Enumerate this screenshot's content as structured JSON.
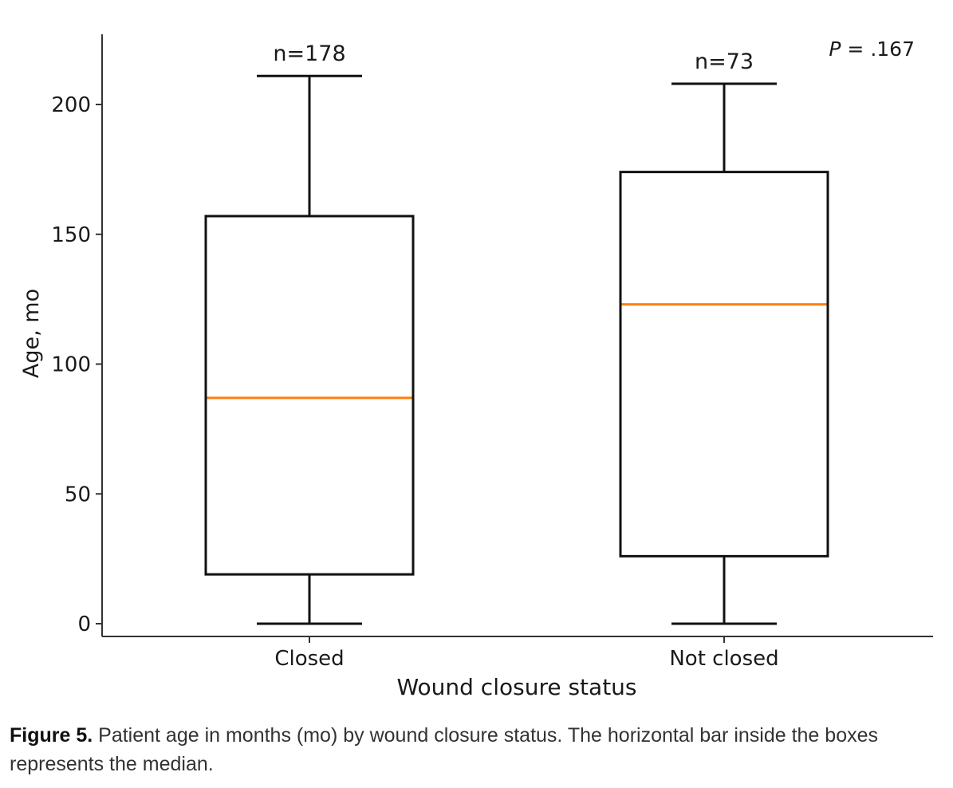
{
  "chart_data": {
    "type": "box",
    "xlabel": "Wound closure status",
    "ylabel": "Age, mo",
    "ylim": [
      -5,
      225
    ],
    "yticks": [
      0,
      50,
      100,
      150,
      200
    ],
    "annotation": "P = .167",
    "median_color": "#ff7f0e",
    "categories": [
      "Closed",
      "Not closed"
    ],
    "boxes": [
      {
        "category": "Closed",
        "n_label": "n=178",
        "whisker_low": 0,
        "q1": 19,
        "median": 87,
        "q3": 157,
        "whisker_high": 211
      },
      {
        "category": "Not closed",
        "n_label": "n=73",
        "whisker_low": 0,
        "q1": 26,
        "median": 123,
        "q3": 174,
        "whisker_high": 208
      }
    ]
  },
  "caption": {
    "label": "Figure 5.",
    "text": "Patient age in months (mo) by wound closure status. The horizontal bar inside the boxes represents the median."
  }
}
